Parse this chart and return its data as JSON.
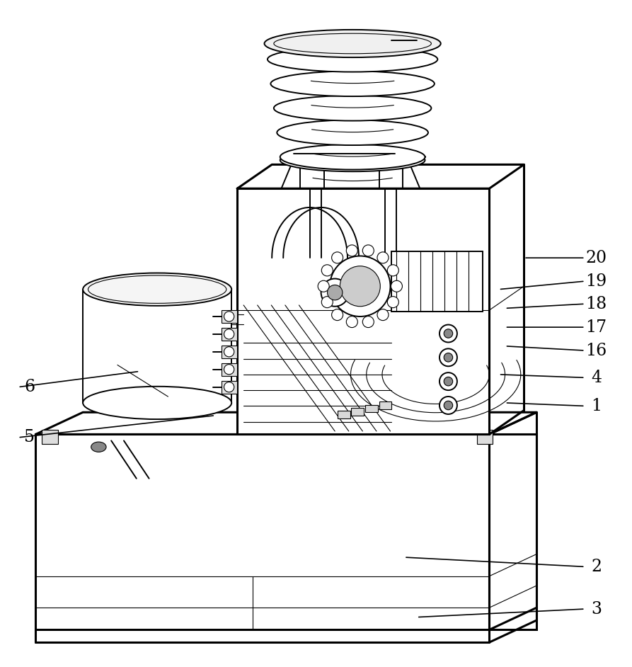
{
  "bg_color": "#ffffff",
  "line_color": "#000000",
  "fig_width": 8.93,
  "fig_height": 9.42,
  "dpi": 100,
  "annotations": {
    "3": {
      "lpos": [
        0.945,
        0.063
      ],
      "lend": [
        0.66,
        0.05
      ]
    },
    "2": {
      "lpos": [
        0.945,
        0.13
      ],
      "lend": [
        0.64,
        0.145
      ]
    },
    "1": {
      "lpos": [
        0.945,
        0.385
      ],
      "lend": [
        0.8,
        0.39
      ]
    },
    "4": {
      "lpos": [
        0.945,
        0.43
      ],
      "lend": [
        0.79,
        0.435
      ]
    },
    "5": {
      "lpos": [
        0.045,
        0.335
      ],
      "lend": [
        0.34,
        0.37
      ]
    },
    "6": {
      "lpos": [
        0.045,
        0.415
      ],
      "lend": [
        0.22,
        0.44
      ]
    },
    "16": {
      "lpos": [
        0.945,
        0.473
      ],
      "lend": [
        0.8,
        0.48
      ]
    },
    "17": {
      "lpos": [
        0.945,
        0.51
      ],
      "lend": [
        0.8,
        0.51
      ]
    },
    "18": {
      "lpos": [
        0.945,
        0.547
      ],
      "lend": [
        0.8,
        0.54
      ]
    },
    "19": {
      "lpos": [
        0.945,
        0.583
      ],
      "lend": [
        0.79,
        0.57
      ]
    },
    "20": {
      "lpos": [
        0.945,
        0.62
      ],
      "lend": [
        0.83,
        0.62
      ]
    }
  }
}
